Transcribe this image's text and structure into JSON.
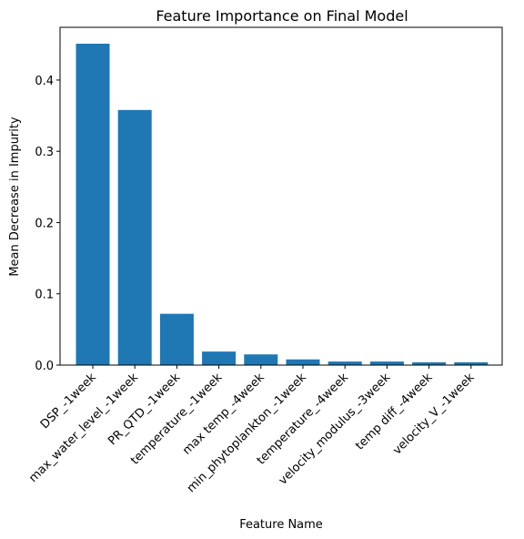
{
  "chart_data": {
    "type": "bar",
    "title": "Feature Importance on Final Model",
    "xlabel": "Feature Name",
    "ylabel": "Mean Decrease in Impurity",
    "categories": [
      "DSP_-1week",
      "max_water_level_-1week",
      "PR_QTD_-1week",
      "temperature_-1week",
      "max temp_-4week",
      "min_phytoplankton_-1week",
      "temperature_-4week",
      "velocity_modulus_-3week",
      "temp diff_-4week",
      "velocity_V_-1week"
    ],
    "values": [
      0.451,
      0.358,
      0.072,
      0.019,
      0.015,
      0.008,
      0.005,
      0.005,
      0.004,
      0.004
    ],
    "ylim": [
      0,
      0.474
    ],
    "yticks": [
      0.0,
      0.1,
      0.2,
      0.3,
      0.4
    ],
    "ytick_labels": [
      "0.0",
      "0.1",
      "0.2",
      "0.3",
      "0.4"
    ],
    "bar_color": "#1f77b4",
    "grid": false,
    "legend": "none"
  }
}
